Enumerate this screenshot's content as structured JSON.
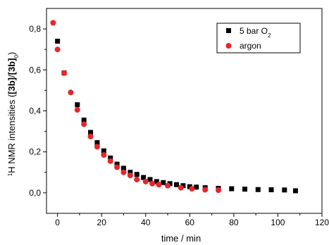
{
  "chart_data": {
    "type": "scatter",
    "xlabel": "time / min",
    "ylabel_parts": {
      "sup": "1",
      "pre": "H NMR intensities (",
      "b1": "[3b]",
      "slash": "/",
      "b2": "[3b]",
      "sub": "0",
      "post": ")"
    },
    "xlim": [
      -5,
      120
    ],
    "ylim": [
      -0.1,
      0.9
    ],
    "xticks": [
      0,
      20,
      40,
      60,
      80,
      100,
      120
    ],
    "xtick_labels": [
      "0",
      "20",
      "40",
      "60",
      "80",
      "100",
      "120"
    ],
    "yticks": [
      0.0,
      0.2,
      0.4,
      0.6,
      0.8
    ],
    "ytick_labels": [
      "0,0",
      "0,2",
      "0,4",
      "0,6",
      "0,8"
    ],
    "legend_position": "top-right",
    "series": [
      {
        "name": "5 bar O2",
        "legend_main": "5 bar O",
        "legend_sub": "2",
        "marker": "square",
        "color": "#000000",
        "x": [
          0,
          3,
          9,
          12,
          15,
          18,
          21,
          24,
          27,
          30,
          33,
          36,
          39,
          42,
          45,
          48,
          51,
          54,
          57,
          60,
          63,
          67,
          73,
          79,
          85,
          91,
          97,
          103,
          108
        ],
        "y": [
          0.74,
          0.585,
          0.43,
          0.355,
          0.295,
          0.245,
          0.205,
          0.17,
          0.14,
          0.12,
          0.1,
          0.09,
          0.075,
          0.065,
          0.055,
          0.05,
          0.045,
          0.04,
          0.035,
          0.03,
          0.028,
          0.025,
          0.022,
          0.02,
          0.018,
          0.016,
          0.015,
          0.014,
          0.01
        ]
      },
      {
        "name": "argon",
        "legend_main": "argon",
        "legend_sub": "",
        "marker": "circle",
        "color": "#e8252b",
        "x": [
          -2,
          0,
          3,
          6,
          9,
          12,
          15,
          18,
          21,
          24,
          27,
          30,
          33,
          36,
          40,
          43,
          46,
          50,
          56,
          61,
          67,
          73
        ],
        "y": [
          0.83,
          0.7,
          0.585,
          0.49,
          0.405,
          0.335,
          0.275,
          0.225,
          0.185,
          0.155,
          0.125,
          0.1,
          0.085,
          0.065,
          0.055,
          0.045,
          0.04,
          0.035,
          0.025,
          0.02,
          0.015,
          0.013
        ]
      }
    ]
  }
}
